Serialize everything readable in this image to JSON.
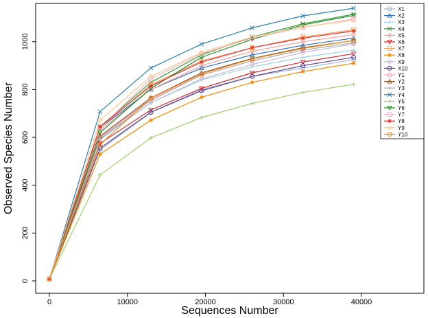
{
  "chart_data": {
    "type": "line",
    "title": "",
    "xlabel": "Sequences Number",
    "ylabel": "Observed Species Number",
    "xlim": [
      0,
      48000
    ],
    "ylim": [
      0,
      1160
    ],
    "xticks": [
      0,
      10000,
      20000,
      30000,
      40000
    ],
    "yticks": [
      0,
      200,
      400,
      600,
      800,
      1000
    ],
    "grid": false,
    "legend_position": "top-right",
    "x": [
      0,
      6500,
      13000,
      19500,
      26000,
      32500,
      39000
    ],
    "series": [
      {
        "name": "X1",
        "color": "#9bb8d8",
        "marker": "circle",
        "values": [
          8,
          548,
          705,
          800,
          855,
          890,
          925
        ]
      },
      {
        "name": "X2",
        "color": "#2f6fb6",
        "marker": "triangle",
        "values": [
          8,
          640,
          800,
          890,
          945,
          985,
          1015
        ]
      },
      {
        "name": "X3",
        "color": "#9ad3e0",
        "marker": "plus",
        "values": [
          8,
          590,
          745,
          840,
          895,
          935,
          965
        ]
      },
      {
        "name": "X4",
        "color": "#3a9a3a",
        "marker": "x",
        "values": [
          8,
          645,
          830,
          945,
          1020,
          1075,
          1115
        ]
      },
      {
        "name": "X5",
        "color": "#f4a3a3",
        "marker": "diamond",
        "values": [
          8,
          630,
          800,
          900,
          960,
          1000,
          1030
        ]
      },
      {
        "name": "X6",
        "color": "#d62728",
        "marker": "triangle-down",
        "values": [
          8,
          575,
          715,
          805,
          870,
          915,
          950
        ]
      },
      {
        "name": "X7",
        "color": "#f5a86a",
        "marker": "square",
        "values": [
          8,
          640,
          820,
          920,
          975,
          1020,
          1050
        ]
      },
      {
        "name": "X8",
        "color": "#f28c00",
        "marker": "asterisk",
        "values": [
          8,
          530,
          672,
          768,
          830,
          875,
          910
        ]
      },
      {
        "name": "X9",
        "color": "#c7b8dc",
        "marker": "diamond",
        "values": [
          8,
          595,
          745,
          845,
          905,
          955,
          990
        ]
      },
      {
        "name": "X10",
        "color": "#5b3c8c",
        "marker": "circle",
        "values": [
          8,
          555,
          705,
          795,
          855,
          900,
          935
        ]
      },
      {
        "name": "Y1",
        "color": "#f4a3b0",
        "marker": "circle",
        "values": [
          8,
          600,
          760,
          860,
          920,
          965,
          995
        ]
      },
      {
        "name": "Y2",
        "color": "#8b5a2b",
        "marker": "triangle",
        "values": [
          8,
          605,
          765,
          870,
          930,
          975,
          1005
        ]
      },
      {
        "name": "Y3",
        "color": "#b0b0b0",
        "marker": "plus",
        "values": [
          8,
          595,
          755,
          860,
          920,
          965,
          995
        ]
      },
      {
        "name": "Y4",
        "color": "#2a7fb0",
        "marker": "x",
        "values": [
          8,
          708,
          890,
          990,
          1058,
          1108,
          1140
        ]
      },
      {
        "name": "Y5",
        "color": "#9ccf6a",
        "marker": "plus",
        "values": [
          8,
          443,
          598,
          683,
          742,
          788,
          822
        ]
      },
      {
        "name": "Y6",
        "color": "#228b22",
        "marker": "triangle-down",
        "values": [
          8,
          620,
          805,
          935,
          1010,
          1070,
          1110
        ]
      },
      {
        "name": "Y7",
        "color": "#f7b6c8",
        "marker": "square",
        "values": [
          8,
          640,
          845,
          950,
          1015,
          1060,
          1095
        ]
      },
      {
        "name": "Y8",
        "color": "#e03030",
        "marker": "asterisk",
        "values": [
          8,
          645,
          815,
          915,
          975,
          1015,
          1045
        ]
      },
      {
        "name": "Y9",
        "color": "#f7c98a",
        "marker": "diamond",
        "values": [
          8,
          672,
          855,
          955,
          1020,
          1062,
          1090
        ]
      },
      {
        "name": "Y10",
        "color": "#f08a20",
        "marker": "circle",
        "values": [
          8,
          570,
          765,
          865,
          928,
          972,
          1005
        ]
      }
    ]
  }
}
